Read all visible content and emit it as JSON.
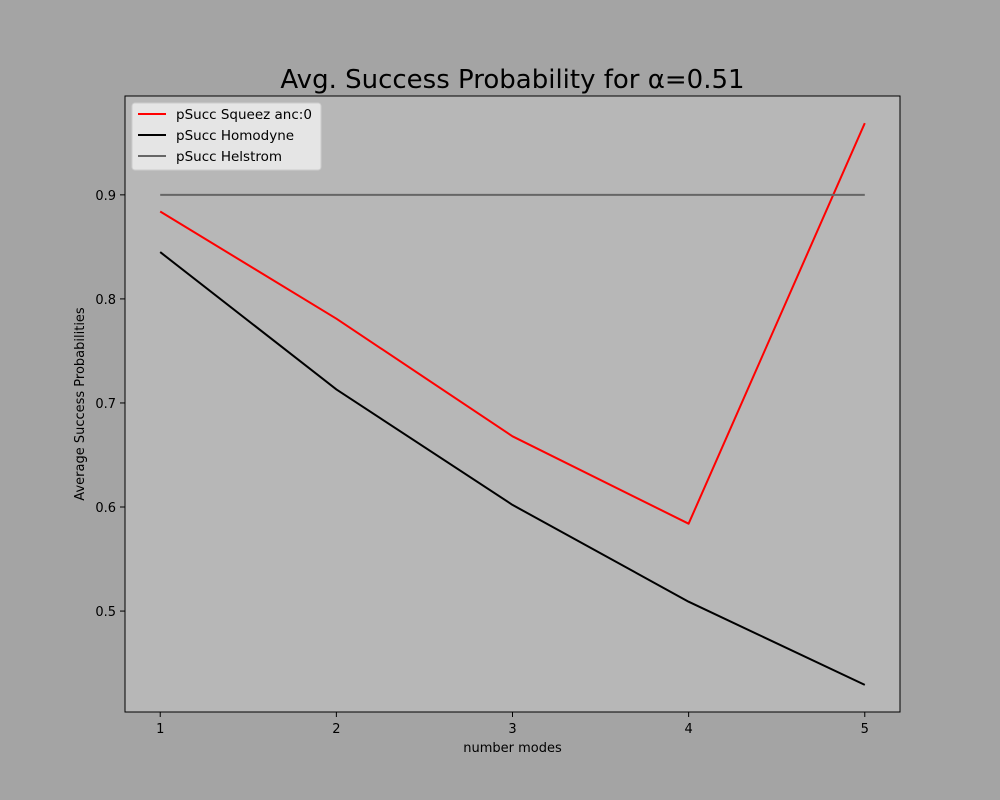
{
  "chart_data": {
    "type": "line",
    "title": "Avg. Success Probability for α=0.51",
    "xlabel": "number modes",
    "ylabel": "Average Success Probabilities",
    "x": [
      1,
      2,
      3,
      4,
      5
    ],
    "x_ticks": [
      1,
      2,
      3,
      4,
      5
    ],
    "y_ticks": [
      0.5,
      0.6,
      0.7,
      0.8,
      0.9
    ],
    "xlim": [
      0.8,
      5.2
    ],
    "ylim": [
      0.403,
      0.995
    ],
    "grid": false,
    "legend_position": "top-left",
    "series": [
      {
        "name": "pSucc Squeez anc:0",
        "color": "#ff0000",
        "values": [
          0.884,
          0.781,
          0.668,
          0.584,
          0.969
        ]
      },
      {
        "name": "pSucc Homodyne",
        "color": "#000000",
        "values": [
          0.845,
          0.713,
          0.602,
          0.509,
          0.429
        ]
      },
      {
        "name": "pSucc Helstrom",
        "color": "#666666",
        "values": [
          0.9,
          0.9,
          0.9,
          0.9,
          0.9
        ]
      }
    ],
    "colors": {
      "figure_background": "#a4a4a4",
      "plot_background": "#b7b7b7"
    }
  }
}
